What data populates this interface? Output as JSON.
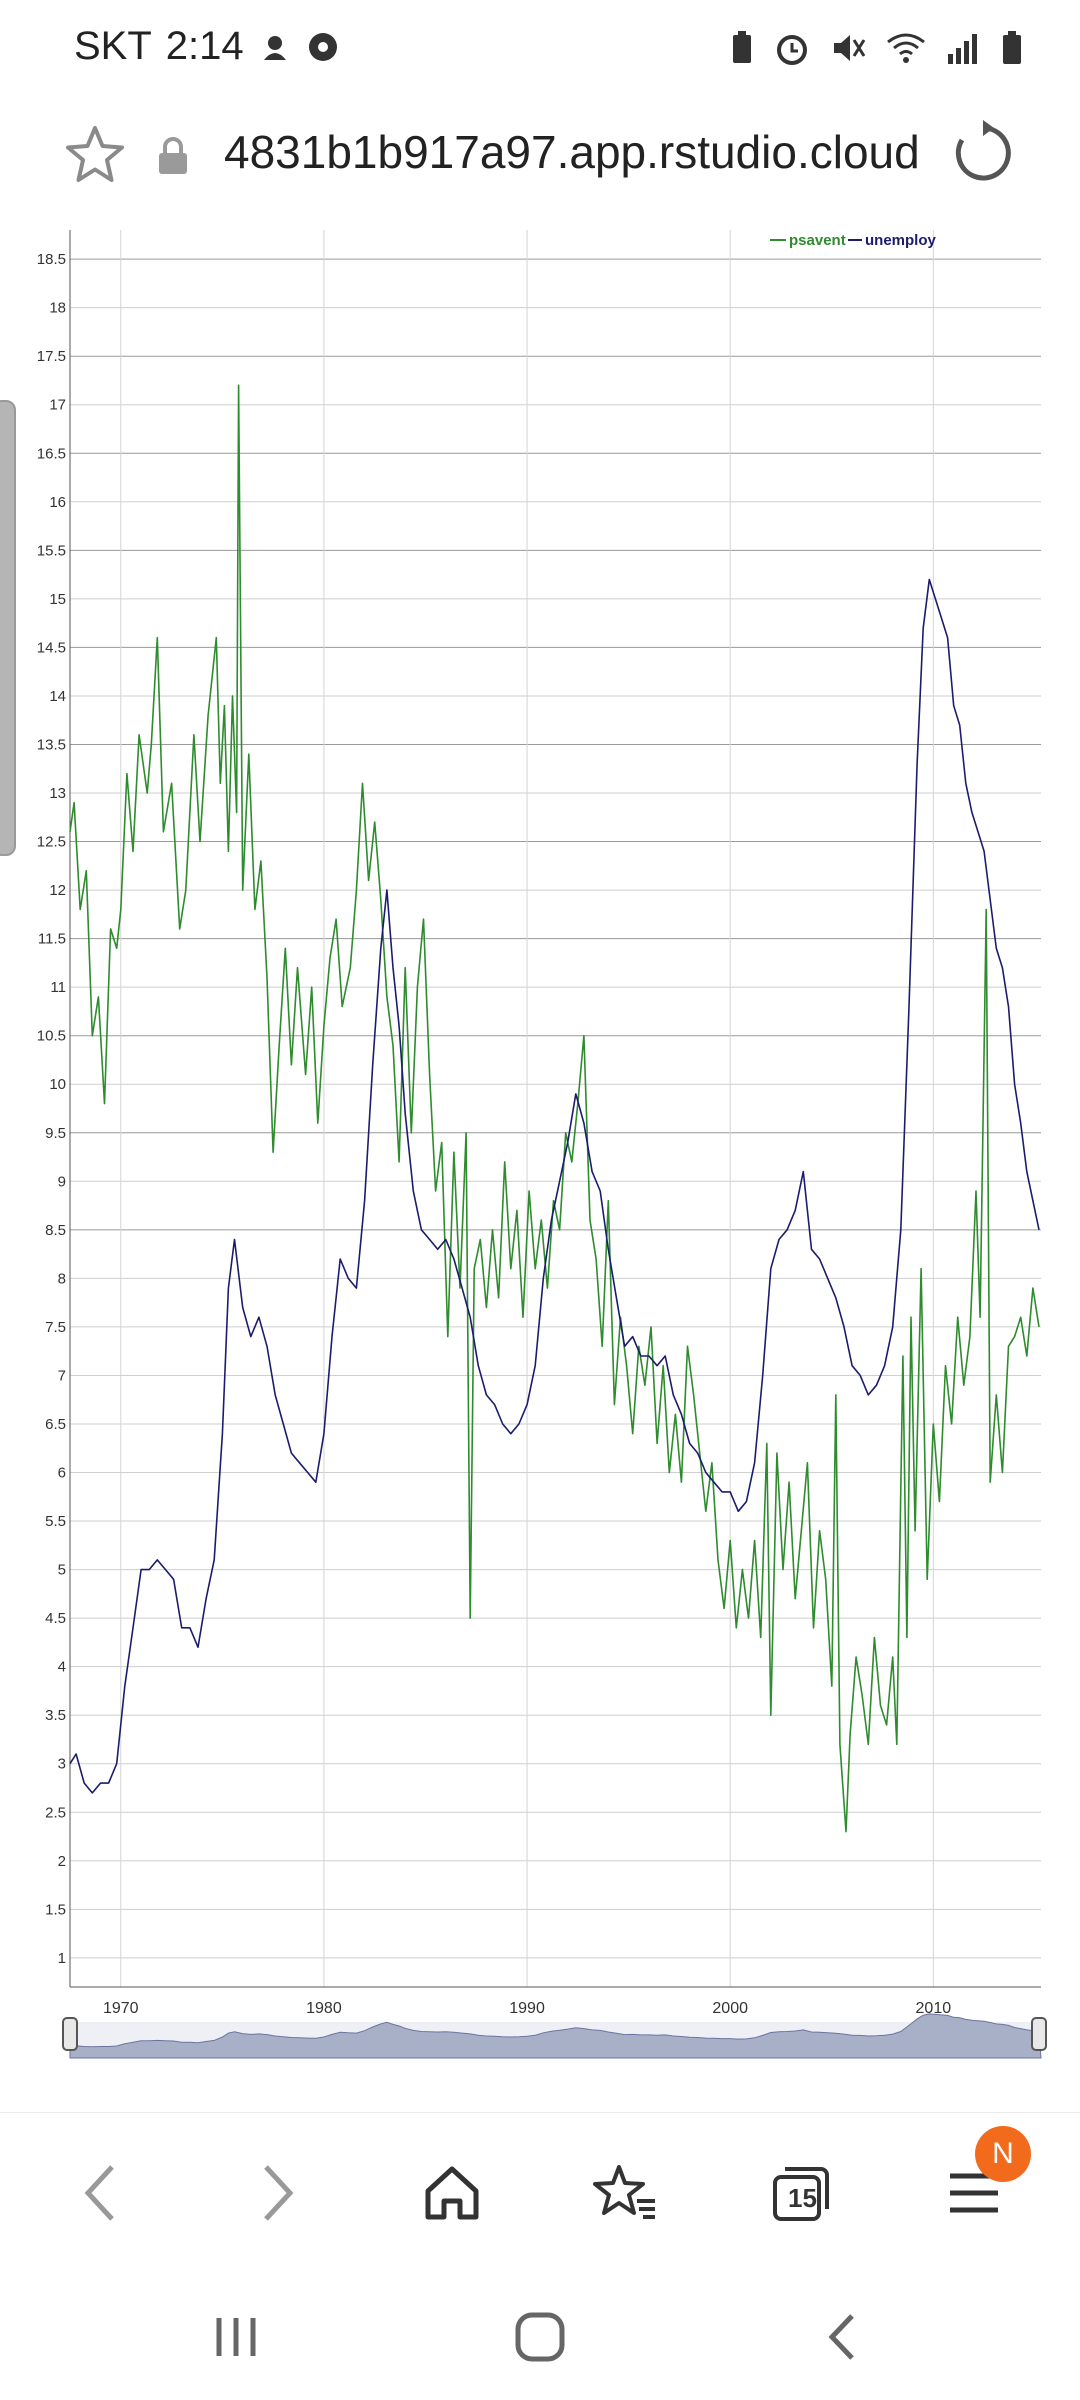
{
  "status_bar": {
    "carrier": "SKT",
    "time": "2:14"
  },
  "address_bar": {
    "url": "4831b1b917a97.app.rstudio.cloud"
  },
  "toolbar": {
    "tab_count": "15",
    "badge": "N",
    "icons": [
      "back-icon",
      "forward-icon",
      "home-icon",
      "bookmarks-icon",
      "tabs-icon",
      "menu-icon"
    ]
  },
  "chart_data": {
    "type": "line",
    "title": "",
    "xlabel": "",
    "ylabel": "",
    "xlim": [
      1967.5,
      2015.3
    ],
    "ylim": [
      0.7,
      18.8
    ],
    "x_ticks": [
      1970,
      1980,
      1990,
      2000,
      2010
    ],
    "y_ticks": [
      1,
      1.5,
      2,
      2.5,
      3,
      3.5,
      4,
      4.5,
      5,
      5.5,
      6,
      6.5,
      7,
      7.5,
      8,
      8.5,
      9,
      9.5,
      10,
      10.5,
      11,
      11.5,
      12,
      12.5,
      13,
      13.5,
      14,
      14.5,
      15,
      15.5,
      16,
      16.5,
      17,
      17.5,
      18,
      18.5
    ],
    "legend_position": "top-right",
    "grid": true,
    "series": [
      {
        "name": "psavent",
        "color": "#2e8b2e",
        "points": [
          [
            1967.5,
            12.6
          ],
          [
            1967.7,
            12.9
          ],
          [
            1968.0,
            11.8
          ],
          [
            1968.3,
            12.2
          ],
          [
            1968.6,
            10.5
          ],
          [
            1968.9,
            10.9
          ],
          [
            1969.2,
            9.8
          ],
          [
            1969.5,
            11.6
          ],
          [
            1969.8,
            11.4
          ],
          [
            1970.0,
            11.8
          ],
          [
            1970.3,
            13.2
          ],
          [
            1970.6,
            12.4
          ],
          [
            1970.9,
            13.6
          ],
          [
            1971.3,
            13.0
          ],
          [
            1971.5,
            13.5
          ],
          [
            1971.8,
            14.6
          ],
          [
            1972.1,
            12.6
          ],
          [
            1972.5,
            13.1
          ],
          [
            1972.9,
            11.6
          ],
          [
            1973.2,
            12.0
          ],
          [
            1973.6,
            13.6
          ],
          [
            1973.9,
            12.5
          ],
          [
            1974.3,
            13.8
          ],
          [
            1974.7,
            14.6
          ],
          [
            1974.9,
            13.1
          ],
          [
            1975.1,
            13.9
          ],
          [
            1975.3,
            12.4
          ],
          [
            1975.5,
            14.0
          ],
          [
            1975.7,
            12.8
          ],
          [
            1975.8,
            17.2
          ],
          [
            1976.0,
            12.0
          ],
          [
            1976.3,
            13.4
          ],
          [
            1976.6,
            11.8
          ],
          [
            1976.9,
            12.3
          ],
          [
            1977.2,
            11.1
          ],
          [
            1977.5,
            9.3
          ],
          [
            1977.8,
            10.4
          ],
          [
            1978.1,
            11.4
          ],
          [
            1978.4,
            10.2
          ],
          [
            1978.7,
            11.2
          ],
          [
            1979.1,
            10.1
          ],
          [
            1979.4,
            11.0
          ],
          [
            1979.7,
            9.6
          ],
          [
            1980.0,
            10.6
          ],
          [
            1980.3,
            11.3
          ],
          [
            1980.6,
            11.7
          ],
          [
            1980.9,
            10.8
          ],
          [
            1981.3,
            11.2
          ],
          [
            1981.6,
            12.0
          ],
          [
            1981.9,
            13.1
          ],
          [
            1982.2,
            12.1
          ],
          [
            1982.5,
            12.7
          ],
          [
            1982.8,
            11.9
          ],
          [
            1983.1,
            10.9
          ],
          [
            1983.4,
            10.4
          ],
          [
            1983.7,
            9.2
          ],
          [
            1984.0,
            11.2
          ],
          [
            1984.3,
            9.5
          ],
          [
            1984.6,
            11.0
          ],
          [
            1984.9,
            11.7
          ],
          [
            1985.2,
            10.1
          ],
          [
            1985.5,
            8.9
          ],
          [
            1985.8,
            9.4
          ],
          [
            1986.1,
            7.4
          ],
          [
            1986.4,
            9.3
          ],
          [
            1986.7,
            7.9
          ],
          [
            1987.0,
            9.5
          ],
          [
            1987.2,
            4.5
          ],
          [
            1987.4,
            8.1
          ],
          [
            1987.7,
            8.4
          ],
          [
            1988.0,
            7.7
          ],
          [
            1988.3,
            8.5
          ],
          [
            1988.6,
            7.8
          ],
          [
            1988.9,
            9.2
          ],
          [
            1989.2,
            8.1
          ],
          [
            1989.5,
            8.7
          ],
          [
            1989.8,
            7.6
          ],
          [
            1990.1,
            8.9
          ],
          [
            1990.4,
            8.1
          ],
          [
            1990.7,
            8.6
          ],
          [
            1991.0,
            7.9
          ],
          [
            1991.3,
            8.8
          ],
          [
            1991.6,
            8.5
          ],
          [
            1991.9,
            9.5
          ],
          [
            1992.2,
            9.2
          ],
          [
            1992.5,
            9.8
          ],
          [
            1992.8,
            10.5
          ],
          [
            1993.1,
            8.6
          ],
          [
            1993.4,
            8.2
          ],
          [
            1993.7,
            7.3
          ],
          [
            1994.0,
            8.8
          ],
          [
            1994.3,
            6.7
          ],
          [
            1994.6,
            7.6
          ],
          [
            1994.9,
            7.1
          ],
          [
            1995.2,
            6.4
          ],
          [
            1995.5,
            7.3
          ],
          [
            1995.8,
            6.9
          ],
          [
            1996.1,
            7.5
          ],
          [
            1996.4,
            6.3
          ],
          [
            1996.7,
            7.1
          ],
          [
            1997.0,
            6.0
          ],
          [
            1997.3,
            6.6
          ],
          [
            1997.6,
            5.9
          ],
          [
            1997.9,
            7.3
          ],
          [
            1998.2,
            6.8
          ],
          [
            1998.5,
            6.2
          ],
          [
            1998.8,
            5.6
          ],
          [
            1999.1,
            6.1
          ],
          [
            1999.4,
            5.1
          ],
          [
            1999.7,
            4.6
          ],
          [
            2000.0,
            5.3
          ],
          [
            2000.3,
            4.4
          ],
          [
            2000.6,
            5.0
          ],
          [
            2000.9,
            4.5
          ],
          [
            2001.2,
            5.3
          ],
          [
            2001.5,
            4.3
          ],
          [
            2001.8,
            6.3
          ],
          [
            2002.0,
            3.5
          ],
          [
            2002.3,
            6.2
          ],
          [
            2002.6,
            5.0
          ],
          [
            2002.9,
            5.9
          ],
          [
            2003.2,
            4.7
          ],
          [
            2003.5,
            5.4
          ],
          [
            2003.8,
            6.1
          ],
          [
            2004.1,
            4.4
          ],
          [
            2004.4,
            5.4
          ],
          [
            2004.7,
            4.9
          ],
          [
            2005.0,
            3.8
          ],
          [
            2005.2,
            6.8
          ],
          [
            2005.4,
            3.2
          ],
          [
            2005.7,
            2.3
          ],
          [
            2005.9,
            3.3
          ],
          [
            2006.2,
            4.1
          ],
          [
            2006.5,
            3.7
          ],
          [
            2006.8,
            3.2
          ],
          [
            2007.1,
            4.3
          ],
          [
            2007.4,
            3.6
          ],
          [
            2007.7,
            3.4
          ],
          [
            2008.0,
            4.1
          ],
          [
            2008.2,
            3.2
          ],
          [
            2008.5,
            7.2
          ],
          [
            2008.7,
            4.3
          ],
          [
            2008.9,
            7.6
          ],
          [
            2009.1,
            5.4
          ],
          [
            2009.4,
            8.1
          ],
          [
            2009.7,
            4.9
          ],
          [
            2010.0,
            6.5
          ],
          [
            2010.3,
            5.7
          ],
          [
            2010.6,
            7.1
          ],
          [
            2010.9,
            6.5
          ],
          [
            2011.2,
            7.6
          ],
          [
            2011.5,
            6.9
          ],
          [
            2011.8,
            7.4
          ],
          [
            2012.1,
            8.9
          ],
          [
            2012.3,
            7.6
          ],
          [
            2012.6,
            11.8
          ],
          [
            2012.8,
            5.9
          ],
          [
            2013.1,
            6.8
          ],
          [
            2013.4,
            6.0
          ],
          [
            2013.7,
            7.3
          ],
          [
            2014.0,
            7.4
          ],
          [
            2014.3,
            7.6
          ],
          [
            2014.6,
            7.2
          ],
          [
            2014.9,
            7.9
          ],
          [
            2015.2,
            7.5
          ]
        ]
      },
      {
        "name": "unemploy",
        "color": "#1c1c6e",
        "points": [
          [
            1967.5,
            3.0
          ],
          [
            1967.8,
            3.1
          ],
          [
            1968.2,
            2.8
          ],
          [
            1968.6,
            2.7
          ],
          [
            1969.0,
            2.8
          ],
          [
            1969.4,
            2.8
          ],
          [
            1969.8,
            3.0
          ],
          [
            1970.2,
            3.8
          ],
          [
            1970.6,
            4.4
          ],
          [
            1971.0,
            5.0
          ],
          [
            1971.4,
            5.0
          ],
          [
            1971.8,
            5.1
          ],
          [
            1972.2,
            5.0
          ],
          [
            1972.6,
            4.9
          ],
          [
            1973.0,
            4.4
          ],
          [
            1973.4,
            4.4
          ],
          [
            1973.8,
            4.2
          ],
          [
            1974.2,
            4.7
          ],
          [
            1974.6,
            5.1
          ],
          [
            1975.0,
            6.4
          ],
          [
            1975.3,
            7.9
          ],
          [
            1975.6,
            8.4
          ],
          [
            1976.0,
            7.7
          ],
          [
            1976.4,
            7.4
          ],
          [
            1976.8,
            7.6
          ],
          [
            1977.2,
            7.3
          ],
          [
            1977.6,
            6.8
          ],
          [
            1978.0,
            6.5
          ],
          [
            1978.4,
            6.2
          ],
          [
            1978.8,
            6.1
          ],
          [
            1979.2,
            6.0
          ],
          [
            1979.6,
            5.9
          ],
          [
            1980.0,
            6.4
          ],
          [
            1980.4,
            7.4
          ],
          [
            1980.8,
            8.2
          ],
          [
            1981.2,
            8.0
          ],
          [
            1981.6,
            7.9
          ],
          [
            1982.0,
            8.8
          ],
          [
            1982.4,
            10.2
          ],
          [
            1982.8,
            11.4
          ],
          [
            1983.1,
            12.0
          ],
          [
            1983.4,
            11.2
          ],
          [
            1983.7,
            10.6
          ],
          [
            1984.0,
            9.7
          ],
          [
            1984.4,
            8.9
          ],
          [
            1984.8,
            8.5
          ],
          [
            1985.2,
            8.4
          ],
          [
            1985.6,
            8.3
          ],
          [
            1986.0,
            8.4
          ],
          [
            1986.4,
            8.2
          ],
          [
            1986.8,
            7.9
          ],
          [
            1987.2,
            7.6
          ],
          [
            1987.6,
            7.1
          ],
          [
            1988.0,
            6.8
          ],
          [
            1988.4,
            6.7
          ],
          [
            1988.8,
            6.5
          ],
          [
            1989.2,
            6.4
          ],
          [
            1989.6,
            6.5
          ],
          [
            1990.0,
            6.7
          ],
          [
            1990.4,
            7.1
          ],
          [
            1990.8,
            8.0
          ],
          [
            1991.2,
            8.6
          ],
          [
            1991.6,
            9.0
          ],
          [
            1992.0,
            9.4
          ],
          [
            1992.4,
            9.9
          ],
          [
            1992.8,
            9.6
          ],
          [
            1993.2,
            9.1
          ],
          [
            1993.6,
            8.9
          ],
          [
            1994.0,
            8.3
          ],
          [
            1994.4,
            7.8
          ],
          [
            1994.8,
            7.3
          ],
          [
            1995.2,
            7.4
          ],
          [
            1995.6,
            7.2
          ],
          [
            1996.0,
            7.2
          ],
          [
            1996.4,
            7.1
          ],
          [
            1996.8,
            7.2
          ],
          [
            1997.2,
            6.8
          ],
          [
            1997.6,
            6.6
          ],
          [
            1998.0,
            6.3
          ],
          [
            1998.4,
            6.2
          ],
          [
            1998.8,
            6.0
          ],
          [
            1999.2,
            5.9
          ],
          [
            1999.6,
            5.8
          ],
          [
            2000.0,
            5.8
          ],
          [
            2000.4,
            5.6
          ],
          [
            2000.8,
            5.7
          ],
          [
            2001.2,
            6.1
          ],
          [
            2001.6,
            7.0
          ],
          [
            2002.0,
            8.1
          ],
          [
            2002.4,
            8.4
          ],
          [
            2002.8,
            8.5
          ],
          [
            2003.2,
            8.7
          ],
          [
            2003.6,
            9.1
          ],
          [
            2004.0,
            8.3
          ],
          [
            2004.4,
            8.2
          ],
          [
            2004.8,
            8.0
          ],
          [
            2005.2,
            7.8
          ],
          [
            2005.6,
            7.5
          ],
          [
            2006.0,
            7.1
          ],
          [
            2006.4,
            7.0
          ],
          [
            2006.8,
            6.8
          ],
          [
            2007.2,
            6.9
          ],
          [
            2007.6,
            7.1
          ],
          [
            2008.0,
            7.5
          ],
          [
            2008.4,
            8.5
          ],
          [
            2008.8,
            10.8
          ],
          [
            2009.2,
            13.3
          ],
          [
            2009.5,
            14.7
          ],
          [
            2009.8,
            15.2
          ],
          [
            2010.1,
            15.0
          ],
          [
            2010.4,
            14.8
          ],
          [
            2010.7,
            14.6
          ],
          [
            2011.0,
            13.9
          ],
          [
            2011.3,
            13.7
          ],
          [
            2011.6,
            13.1
          ],
          [
            2011.9,
            12.8
          ],
          [
            2012.2,
            12.6
          ],
          [
            2012.5,
            12.4
          ],
          [
            2012.8,
            11.9
          ],
          [
            2013.1,
            11.4
          ],
          [
            2013.4,
            11.2
          ],
          [
            2013.7,
            10.8
          ],
          [
            2014.0,
            10.0
          ],
          [
            2014.3,
            9.6
          ],
          [
            2014.6,
            9.1
          ],
          [
            2014.9,
            8.8
          ],
          [
            2015.2,
            8.5
          ]
        ]
      }
    ]
  }
}
